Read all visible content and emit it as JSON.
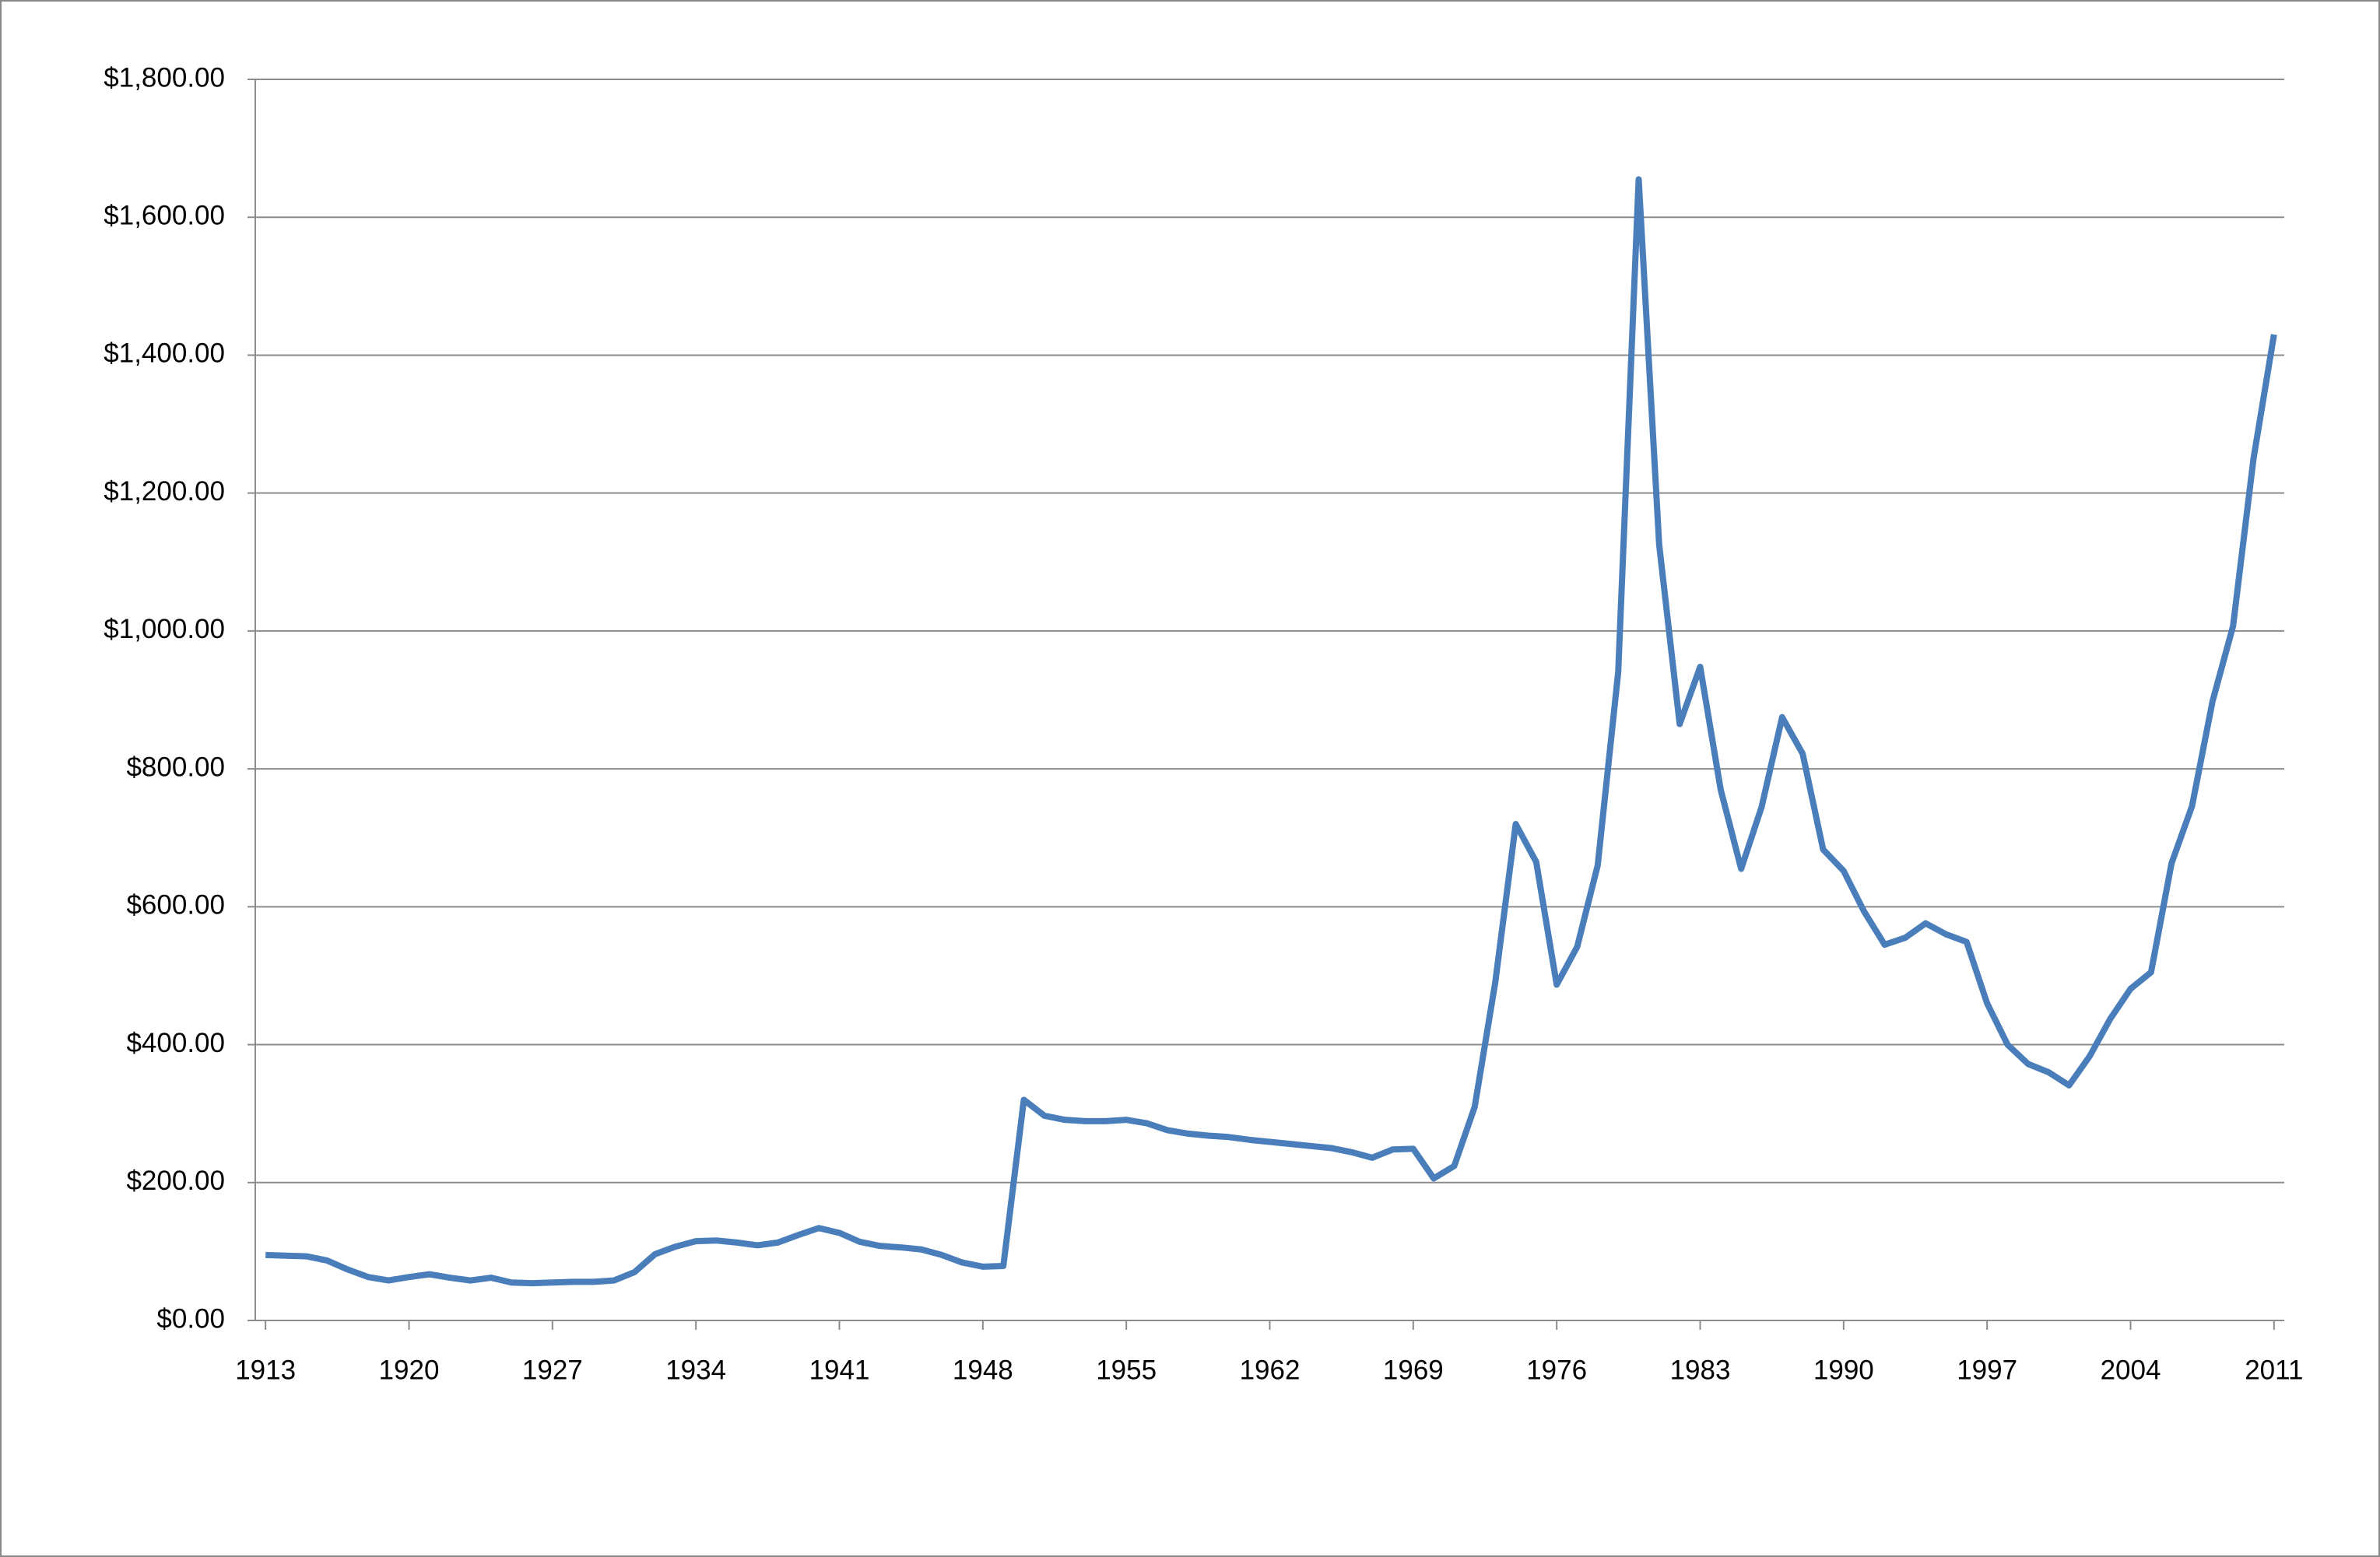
{
  "chart_data": {
    "type": "line",
    "x": [
      1913,
      1914,
      1915,
      1916,
      1917,
      1918,
      1919,
      1920,
      1921,
      1922,
      1923,
      1924,
      1925,
      1926,
      1927,
      1928,
      1929,
      1930,
      1931,
      1932,
      1933,
      1934,
      1935,
      1936,
      1937,
      1938,
      1939,
      1940,
      1941,
      1942,
      1943,
      1944,
      1945,
      1946,
      1947,
      1948,
      1949,
      1950,
      1951,
      1952,
      1953,
      1954,
      1955,
      1956,
      1957,
      1958,
      1959,
      1960,
      1961,
      1962,
      1963,
      1964,
      1965,
      1966,
      1967,
      1968,
      1969,
      1970,
      1971,
      1972,
      1973,
      1974,
      1975,
      1976,
      1977,
      1978,
      1979,
      1980,
      1981,
      1982,
      1983,
      1984,
      1985,
      1986,
      1987,
      1988,
      1989,
      1990,
      1991,
      1992,
      1993,
      1994,
      1995,
      1996,
      1997,
      1998,
      1999,
      2000,
      2001,
      2002,
      2003,
      2004,
      2005,
      2006,
      2007,
      2008,
      2009,
      2010,
      2011
    ],
    "values": [
      95,
      94,
      93,
      87,
      74,
      63,
      58,
      63,
      67,
      62,
      58,
      62,
      55,
      54,
      55,
      56,
      56,
      58,
      70,
      96,
      107,
      115,
      116,
      113,
      109,
      113,
      124,
      134,
      127,
      114,
      108,
      106,
      103,
      95,
      84,
      78,
      79,
      320,
      297,
      291,
      289,
      289,
      291,
      286,
      276,
      271,
      268,
      266,
      262,
      259,
      256,
      253,
      250,
      244,
      236,
      248,
      249,
      206,
      224,
      310,
      490,
      720,
      665,
      487,
      542,
      660,
      940,
      1655,
      1125,
      865,
      948,
      770,
      655,
      745,
      875,
      822,
      683,
      652,
      593,
      545,
      555,
      576,
      560,
      549,
      460,
      400,
      372,
      360,
      341,
      383,
      437,
      481,
      505,
      663,
      746,
      898,
      1007,
      1250,
      1430
    ],
    "color": "#4a7ebb",
    "xlim": [
      1912.5,
      2011.5
    ],
    "xticks": [
      1913,
      1920,
      1927,
      1934,
      1941,
      1948,
      1955,
      1962,
      1969,
      1976,
      1983,
      1990,
      1997,
      2004,
      2011
    ],
    "ylim": [
      0,
      1800
    ],
    "yticks": [
      {
        "value": 0,
        "label": "$0.00"
      },
      {
        "value": 200,
        "label": "$200.00"
      },
      {
        "value": 400,
        "label": "$400.00"
      },
      {
        "value": 600,
        "label": "$600.00"
      },
      {
        "value": 800,
        "label": "$800.00"
      },
      {
        "value": 1000,
        "label": "$1,000.00"
      },
      {
        "value": 1200,
        "label": "$1,200.00"
      },
      {
        "value": 1400,
        "label": "$1,400.00"
      },
      {
        "value": 1600,
        "label": "$1,600.00"
      },
      {
        "value": 1800,
        "label": "$1,800.00"
      }
    ],
    "grid": true
  }
}
